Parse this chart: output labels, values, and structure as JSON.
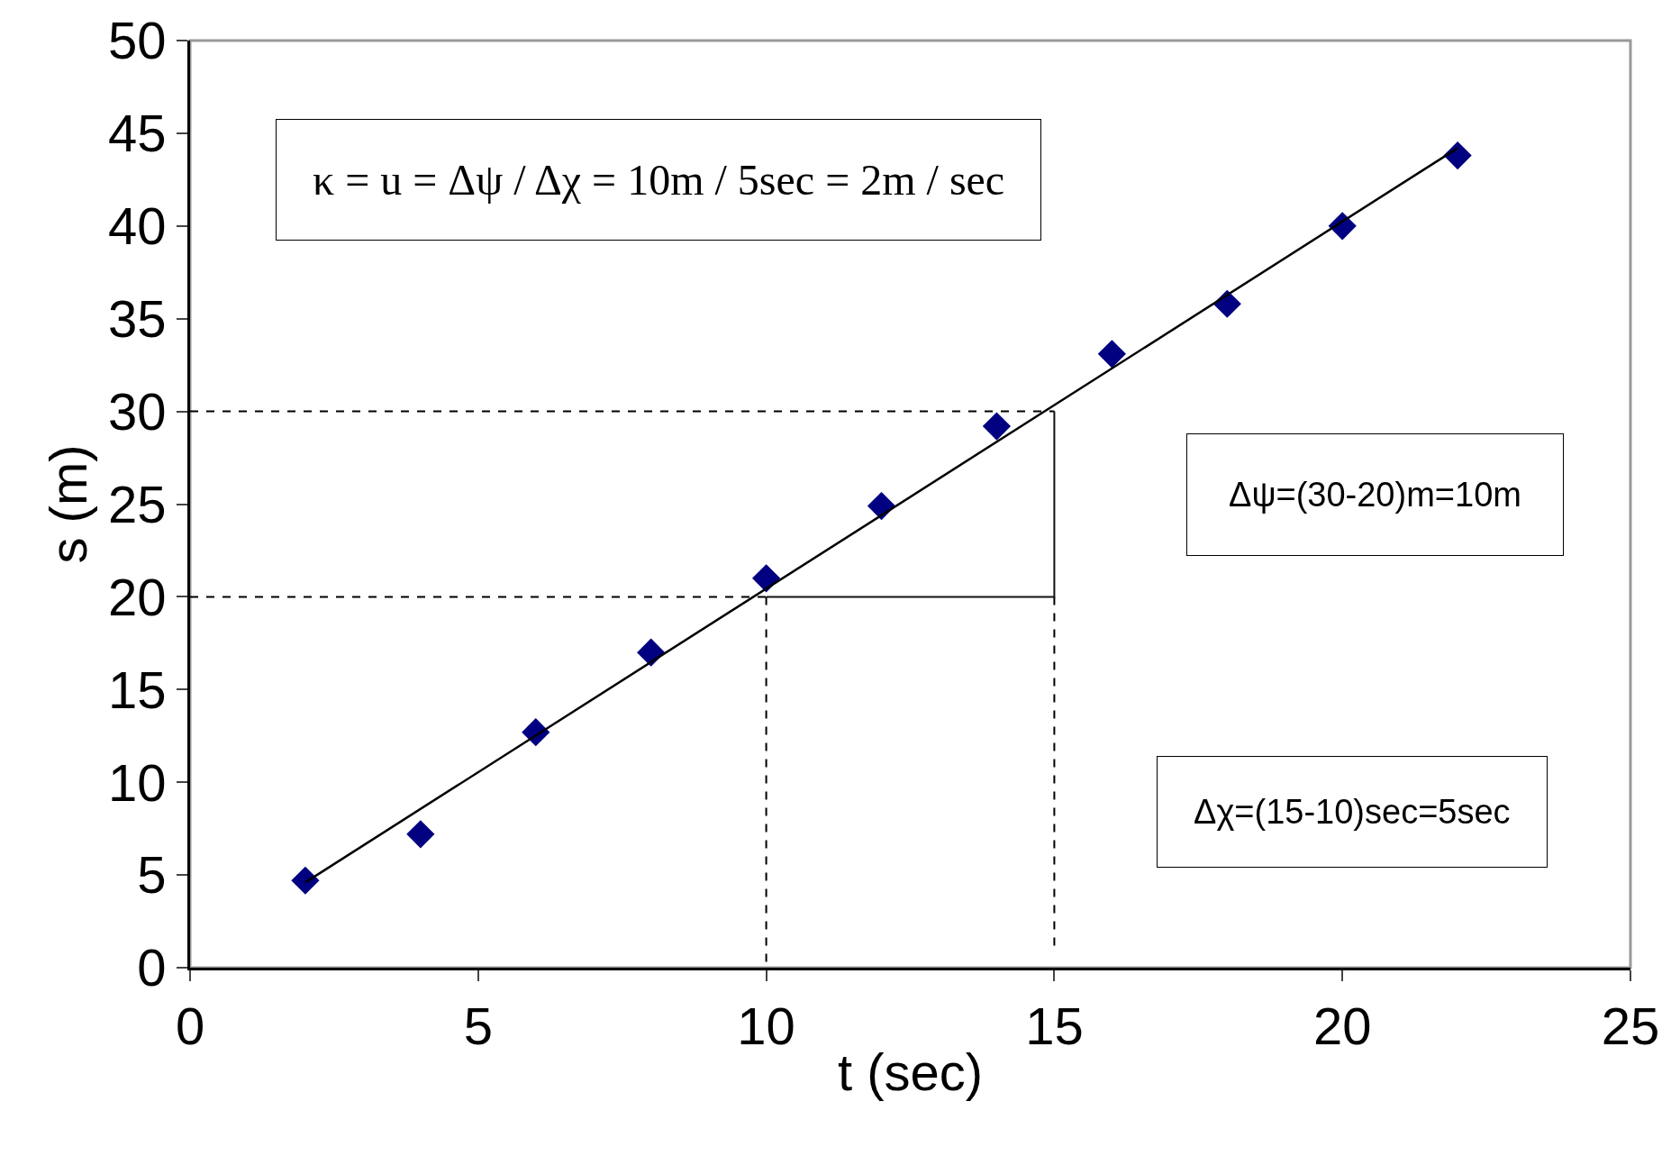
{
  "chart_data": {
    "type": "scatter",
    "xlabel": "t (sec)",
    "ylabel": "s (m)",
    "xlim": [
      0,
      25
    ],
    "xticks": [
      0,
      5,
      10,
      15,
      20,
      25
    ],
    "ylim": [
      0,
      50
    ],
    "yticks": [
      0,
      5,
      10,
      15,
      20,
      25,
      30,
      35,
      40,
      45,
      50
    ],
    "grid": false,
    "legend": false,
    "series": [
      {
        "marker": "diamond",
        "color": "#000080",
        "x": [
          2,
          4,
          6,
          8,
          10,
          12,
          14,
          16,
          18,
          20,
          22
        ],
        "values": [
          4.7,
          7.2,
          12.7,
          17.0,
          21.0,
          24.9,
          29.2,
          33.1,
          35.8,
          40.0,
          43.8
        ]
      },
      {
        "type": "line",
        "marker": "none",
        "color": "#000000",
        "line_style": "solid",
        "x": [
          2,
          22
        ],
        "values": [
          4.6,
          44.2
        ]
      },
      {
        "type": "line",
        "marker": "none",
        "color": "#000000",
        "line_style": "dashed",
        "x": [
          0,
          15,
          null,
          0,
          10,
          null,
          10,
          10,
          null,
          15,
          15
        ],
        "values": [
          30,
          30,
          null,
          20,
          20,
          null,
          20,
          0,
          null,
          20,
          1
        ]
      },
      {
        "type": "line",
        "marker": "none",
        "color": "#111111",
        "line_style": "solid",
        "x": [
          10,
          15,
          15
        ],
        "values": [
          20,
          20,
          30
        ]
      }
    ],
    "annotations": [
      "κ = u = Δψ / Δχ = 10m / 5sec = 2m / sec",
      "Δψ=(30-20)m=10m",
      "Δχ=(15-10)sec=5sec"
    ]
  }
}
